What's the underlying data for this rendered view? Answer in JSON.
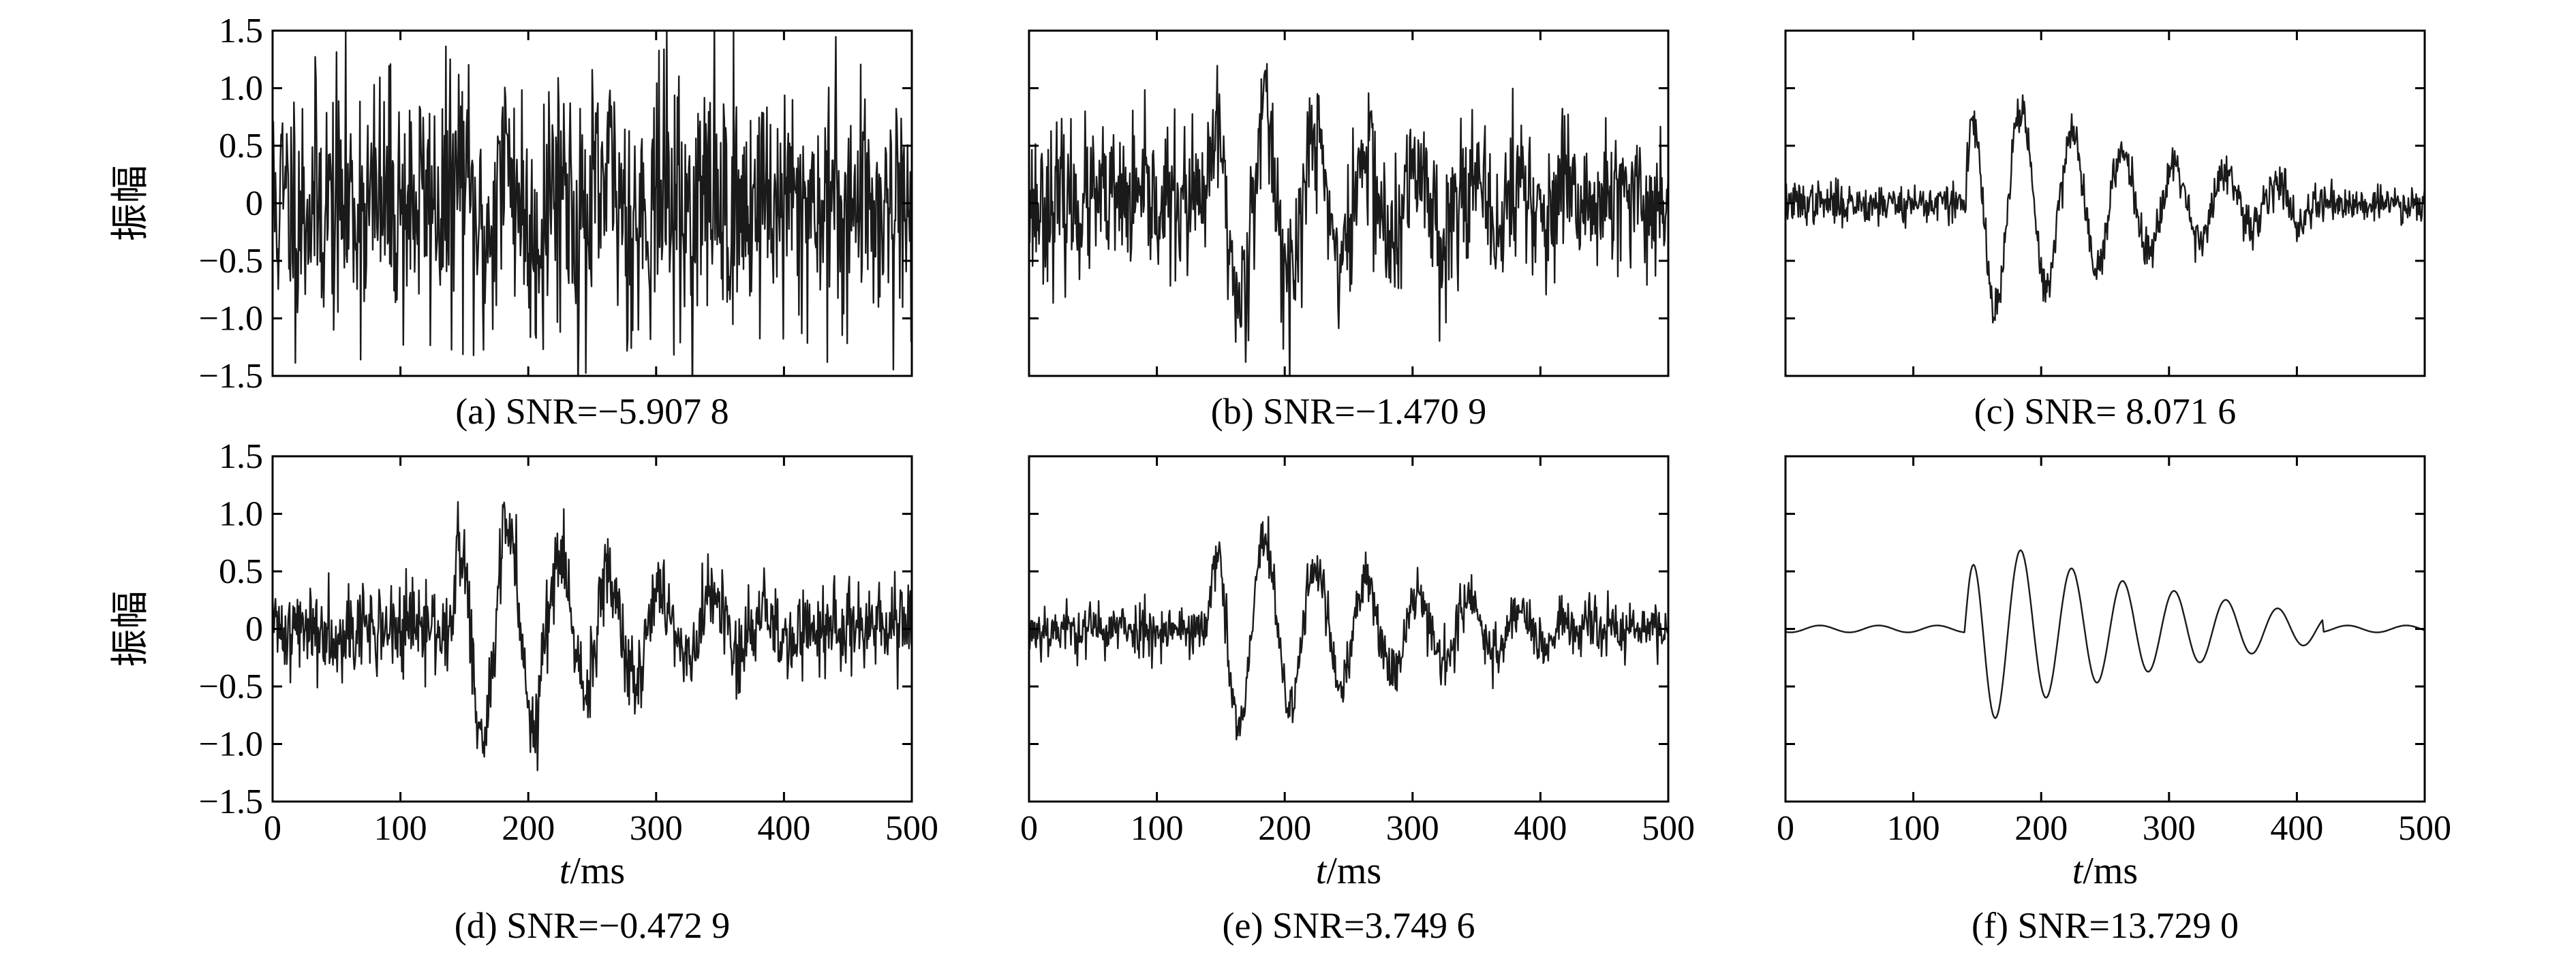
{
  "chart_data": [
    {
      "type": "line",
      "caption": "(a) SNR=−5.907 8",
      "ylabel": "振幅",
      "xlabel": "",
      "xticks": [],
      "yticks": [
        "1.5",
        "1.0",
        "0.5",
        "0",
        "−0.5",
        "−1.0",
        "−1.5"
      ],
      "xlim": [
        0,
        500
      ],
      "ylim": [
        -1.5,
        1.5
      ],
      "noise": 0.55,
      "signal": 0.35,
      "smooth": false,
      "seed": 11
    },
    {
      "type": "line",
      "caption": "(b) SNR=−1.470 9",
      "ylabel": "",
      "xlabel": "",
      "xticks": [],
      "yticks": [],
      "xlim": [
        0,
        500
      ],
      "ylim": [
        -1.5,
        1.5
      ],
      "noise": 0.32,
      "signal": 0.85,
      "smooth": false,
      "seed": 23
    },
    {
      "type": "line",
      "caption": "(c) SNR= 8.071 6",
      "ylabel": "",
      "xlabel": "",
      "xticks": [],
      "yticks": [],
      "xlim": [
        0,
        500
      ],
      "ylim": [
        -1.5,
        1.5
      ],
      "noise": 0.09,
      "signal": 0.9,
      "smooth": false,
      "seed": 37
    },
    {
      "type": "line",
      "caption": "(d) SNR=−0.472 9",
      "ylabel": "振幅",
      "xlabel": "ms",
      "xticks": [
        "0",
        "100",
        "200",
        "300",
        "400",
        "500"
      ],
      "yticks": [
        "1.5",
        "1.0",
        "0.5",
        "0",
        "−0.5",
        "−1.0",
        "−1.5"
      ],
      "xlim": [
        0,
        500
      ],
      "ylim": [
        -1.5,
        1.5
      ],
      "noise": 0.2,
      "signal": 0.95,
      "smooth": false,
      "seed": 41
    },
    {
      "type": "line",
      "caption": "(e) SNR=3.749 6",
      "ylabel": "",
      "xlabel": "ms",
      "xticks": [
        "0",
        "100",
        "200",
        "300",
        "400",
        "500"
      ],
      "yticks": [],
      "xlim": [
        0,
        500
      ],
      "ylim": [
        -1.5,
        1.5
      ],
      "noise": 0.12,
      "signal": 0.85,
      "smooth": false,
      "seed": 53
    },
    {
      "type": "line",
      "caption": "(f) SNR=13.729 0",
      "ylabel": "",
      "xlabel": "ms",
      "xticks": [
        "0",
        "100",
        "200",
        "300",
        "400",
        "500"
      ],
      "yticks": [],
      "xlim": [
        0,
        500
      ],
      "ylim": [
        -1.5,
        1.5
      ],
      "noise": 0.03,
      "signal": 0.78,
      "smooth": true,
      "seed": 67
    }
  ],
  "xlabel_var": "t"
}
